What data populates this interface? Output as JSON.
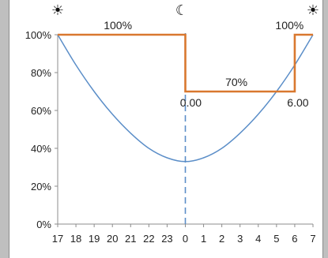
{
  "chart_data": {
    "type": "line",
    "x_ticks": [
      "17",
      "18",
      "19",
      "20",
      "21",
      "22",
      "23",
      "0",
      "1",
      "2",
      "3",
      "4",
      "5",
      "6",
      "7"
    ],
    "y_ticks": [
      "0%",
      "20%",
      "40%",
      "60%",
      "80%",
      "100%"
    ],
    "ylim": [
      0,
      1
    ],
    "grid": false,
    "series": [
      {
        "style": "step",
        "color": "#d9782f",
        "points": [
          [
            -7,
            1.0
          ],
          [
            0,
            1.0
          ],
          [
            0,
            0.7
          ],
          [
            6,
            0.7
          ],
          [
            6,
            1.0
          ],
          [
            7,
            1.0
          ]
        ]
      },
      {
        "style": "curve",
        "color": "#5b8ec8",
        "x": [
          -7,
          -6,
          -5,
          -4,
          -3,
          -2,
          -1,
          0,
          1,
          2,
          3,
          4,
          5,
          6,
          7
        ],
        "y": [
          1.0,
          0.84,
          0.7,
          0.58,
          0.48,
          0.4,
          0.35,
          0.33,
          0.35,
          0.4,
          0.48,
          0.58,
          0.7,
          0.84,
          1.0
        ]
      }
    ],
    "vertical_reference_line": {
      "x": 0,
      "color": "#5b8ec8",
      "style": "dashed"
    },
    "annotations": [
      {
        "text": "100%",
        "x": -3.7,
        "y": 1.0
      },
      {
        "text": "70%",
        "x": 2.8,
        "y": 0.7
      },
      {
        "text": "0.00",
        "x": 0.3,
        "y": 0.7
      },
      {
        "text": "6.00",
        "x": 6.0,
        "y": 0.7
      },
      {
        "text": "100%",
        "x": 5.8,
        "y": 1.0
      }
    ],
    "symbols": [
      {
        "icon": "sun-icon",
        "glyph": "☀",
        "x": -7
      },
      {
        "icon": "moon-icon",
        "glyph": "☾",
        "x": -0.2
      },
      {
        "icon": "sun-icon",
        "glyph": "☀",
        "x": 7
      }
    ]
  }
}
